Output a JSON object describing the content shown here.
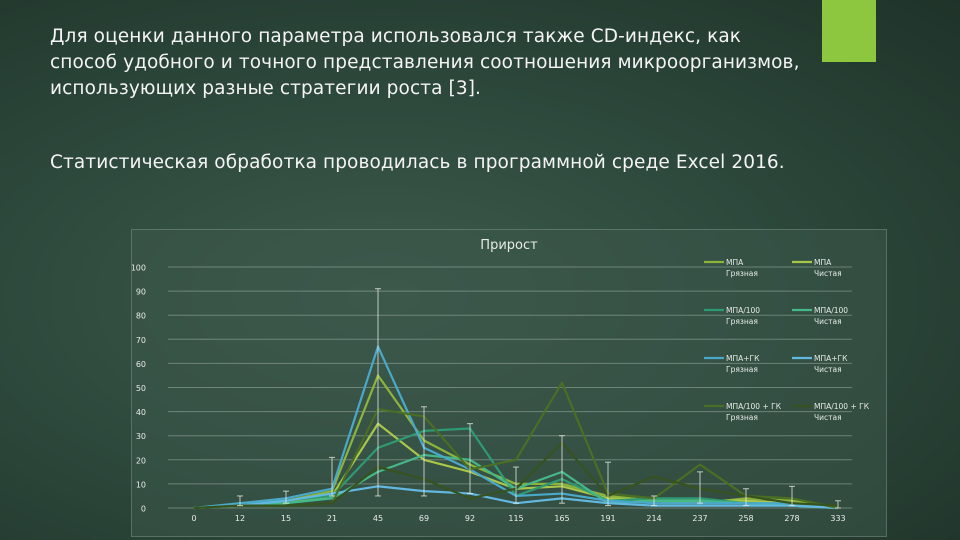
{
  "paragraphs": [
    "Для оценки данного параметра использовался также CD-индекс, как способ удобного и точного представления соотношения микроорганизмов, использующих разные стратегии роста [3].",
    "Статистическая обработка проводилась в программной среде Excel 2016."
  ],
  "colors": {
    "accent": "#8dc63f"
  },
  "chart_data": {
    "type": "line",
    "title": "Прирост",
    "categories": [
      "0",
      "12",
      "15",
      "21",
      "45",
      "69",
      "92",
      "115",
      "165",
      "191",
      "214",
      "237",
      "258",
      "278",
      "333"
    ],
    "yticks": [
      0,
      10,
      20,
      30,
      40,
      50,
      60,
      70,
      80,
      90,
      100
    ],
    "ylim": [
      0,
      100
    ],
    "grid": true,
    "legend_placement": "right",
    "series": [
      {
        "name": "МПА Грязная",
        "color": "#8cb43c",
        "values": [
          0,
          1,
          3,
          7,
          55,
          28,
          18,
          10,
          10,
          5,
          3,
          2,
          4,
          3,
          0
        ]
      },
      {
        "name": "МПА Чистая",
        "color": "#a8c74a",
        "values": [
          0,
          1,
          2,
          5,
          35,
          20,
          15,
          8,
          9,
          4,
          3,
          3,
          3,
          2,
          0
        ]
      },
      {
        "name": "МПА/100 Грязная",
        "color": "#2e9a74",
        "values": [
          0,
          2,
          3,
          5,
          25,
          32,
          33,
          5,
          12,
          3,
          4,
          4,
          2,
          1,
          0
        ]
      },
      {
        "name": "МПА/100 Чистая",
        "color": "#45b88a",
        "values": [
          0,
          1,
          2,
          4,
          15,
          22,
          20,
          8,
          15,
          2,
          3,
          3,
          2,
          1,
          0
        ]
      },
      {
        "name": "МПА+ГК Грязная",
        "color": "#4aa8c9",
        "values": [
          0,
          2,
          4,
          8,
          67,
          25,
          16,
          5,
          6,
          3,
          2,
          2,
          2,
          2,
          0
        ]
      },
      {
        "name": "МПА+ГК Чистая",
        "color": "#63b8e0",
        "values": [
          0,
          1,
          3,
          6,
          9,
          7,
          6,
          2,
          4,
          2,
          1,
          1,
          1,
          1,
          0
        ]
      },
      {
        "name": "МПА/100 + ГК Грязная",
        "color": "#4a6e24",
        "values": [
          0,
          1,
          1,
          2,
          41,
          38,
          16,
          20,
          52,
          6,
          4,
          18,
          5,
          4,
          0
        ]
      },
      {
        "name": "МПА/100 + ГК Чистая",
        "color": "#36521f",
        "values": [
          0,
          1,
          1,
          2,
          17,
          12,
          4,
          8,
          27,
          5,
          13,
          8,
          5,
          2,
          1
        ]
      }
    ],
    "error_bars": [
      {
        "x": "12",
        "low": 1,
        "high": 5
      },
      {
        "x": "15",
        "low": 2,
        "high": 7
      },
      {
        "x": "21",
        "low": 5,
        "high": 21
      },
      {
        "x": "45",
        "low": 5,
        "high": 91
      },
      {
        "x": "69",
        "low": 5,
        "high": 42
      },
      {
        "x": "92",
        "low": 6,
        "high": 35
      },
      {
        "x": "115",
        "low": 2,
        "high": 17
      },
      {
        "x": "165",
        "low": 2,
        "high": 30
      },
      {
        "x": "191",
        "low": 1,
        "high": 19
      },
      {
        "x": "214",
        "low": 1,
        "high": 5
      },
      {
        "x": "237",
        "low": 2,
        "high": 15
      },
      {
        "x": "258",
        "low": 1,
        "high": 8
      },
      {
        "x": "278",
        "low": 1,
        "high": 9
      },
      {
        "x": "333",
        "low": 0,
        "high": 3
      }
    ]
  }
}
